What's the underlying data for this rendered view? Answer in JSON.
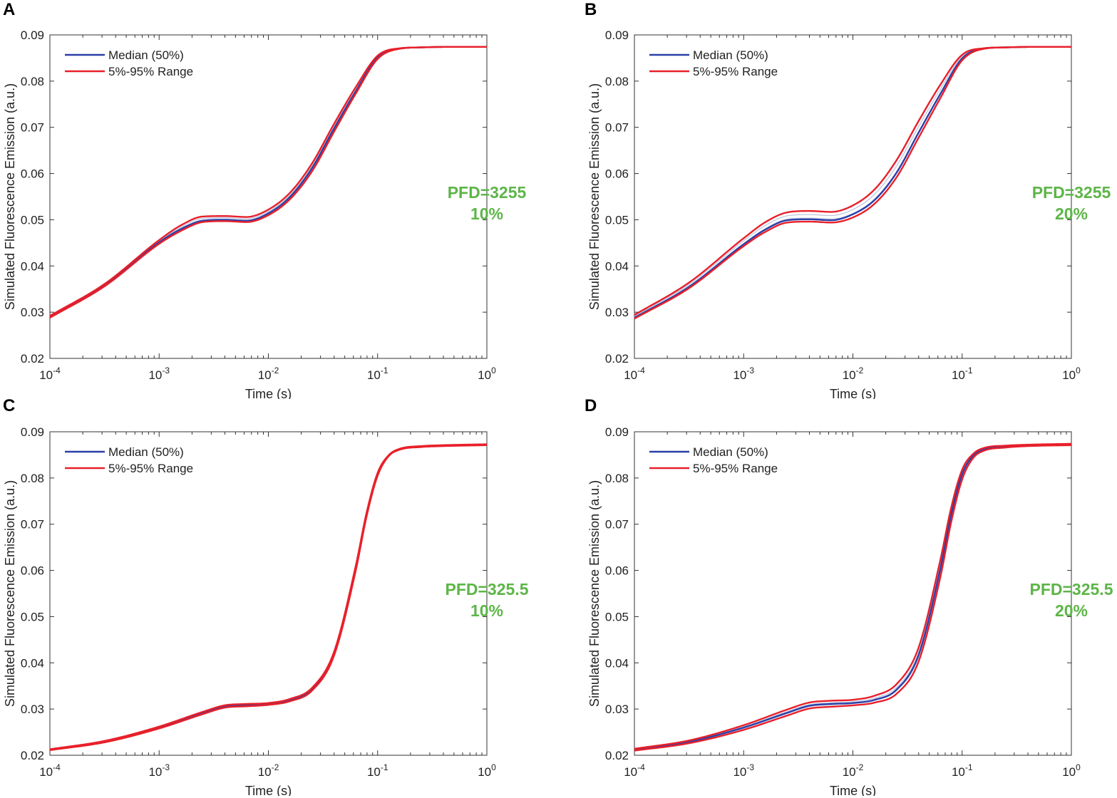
{
  "colors": {
    "median": "#2b3fa8",
    "range": "#e8202a",
    "inner": "#b9c4dc",
    "annotation": "#5db548",
    "axis": "#333333"
  },
  "legend": {
    "median_label": "Median (50%)",
    "range_label": "5%-95% Range"
  },
  "chart_data": [
    {
      "panel": "A",
      "type": "line",
      "xlabel": "Time (s)",
      "ylabel": "Simulated Fluorescence Emission (a.u.)",
      "xscale": "log",
      "xlim": [
        0.0001,
        1
      ],
      "ylim": [
        0.02,
        0.09
      ],
      "yticks": [
        "0.02",
        "0.03",
        "0.04",
        "0.05",
        "0.06",
        "0.07",
        "0.08",
        "0.09"
      ],
      "xticks": [
        {
          "base": "10",
          "exp": "-4"
        },
        {
          "base": "10",
          "exp": "-3"
        },
        {
          "base": "10",
          "exp": "-2"
        },
        {
          "base": "10",
          "exp": "-1"
        },
        {
          "base": "10",
          "exp": "0"
        }
      ],
      "annotation": [
        "PFD=3255",
        "10%"
      ],
      "legend_position": "top-left",
      "x_log10": [
        -4,
        -3.5,
        -3,
        -2.8,
        -2.6,
        -2.4,
        -2.2,
        -2.0,
        -1.8,
        -1.6,
        -1.4,
        -1.2,
        -1.0,
        -0.8,
        -0.6,
        -0.4,
        0
      ],
      "series": [
        {
          "name": "5%",
          "role": "range",
          "values": [
            0.0288,
            0.0356,
            0.0448,
            0.0476,
            0.0495,
            0.0497,
            0.0495,
            0.051,
            0.0545,
            0.0605,
            0.069,
            0.0773,
            0.0848,
            0.087,
            0.0873,
            0.0874,
            0.0874
          ]
        },
        {
          "name": "Median (50%)",
          "role": "median",
          "values": [
            0.029,
            0.0358,
            0.0451,
            0.048,
            0.0498,
            0.05,
            0.0498,
            0.0514,
            0.055,
            0.0612,
            0.0697,
            0.0778,
            0.0851,
            0.087,
            0.0873,
            0.0874,
            0.0874
          ]
        },
        {
          "name": "95%",
          "role": "range",
          "values": [
            0.0292,
            0.0361,
            0.0456,
            0.0488,
            0.0507,
            0.0508,
            0.0506,
            0.0522,
            0.0559,
            0.0622,
            0.0707,
            0.0787,
            0.0855,
            0.0871,
            0.0873,
            0.0874,
            0.0874
          ]
        }
      ]
    },
    {
      "panel": "B",
      "type": "line",
      "xlabel": "Time (s)",
      "ylabel": "Simulated Fluorescence Emission (a.u.)",
      "xscale": "log",
      "xlim": [
        0.0001,
        1
      ],
      "ylim": [
        0.02,
        0.09
      ],
      "yticks": [
        "0.02",
        "0.03",
        "0.04",
        "0.05",
        "0.06",
        "0.07",
        "0.08",
        "0.09"
      ],
      "xticks": [
        {
          "base": "10",
          "exp": "-4"
        },
        {
          "base": "10",
          "exp": "-3"
        },
        {
          "base": "10",
          "exp": "-2"
        },
        {
          "base": "10",
          "exp": "-1"
        },
        {
          "base": "10",
          "exp": "0"
        }
      ],
      "annotation": [
        "PFD=3255",
        "20%"
      ],
      "legend_position": "top-left",
      "x_log10": [
        -4,
        -3.5,
        -3,
        -2.8,
        -2.6,
        -2.4,
        -2.2,
        -2.0,
        -1.8,
        -1.6,
        -1.4,
        -1.2,
        -1.0,
        -0.8,
        -0.6,
        -0.4,
        0
      ],
      "series": [
        {
          "name": "5%",
          "role": "range",
          "values": [
            0.0286,
            0.0352,
            0.0443,
            0.0474,
            0.0494,
            0.0496,
            0.0494,
            0.0505,
            0.0535,
            0.0592,
            0.0677,
            0.0763,
            0.0845,
            0.087,
            0.0873,
            0.0874,
            0.0874
          ]
        },
        {
          "name": "Median (50%)",
          "role": "median",
          "values": [
            0.0288,
            0.0355,
            0.0447,
            0.0479,
            0.0499,
            0.0501,
            0.0499,
            0.0512,
            0.0543,
            0.0602,
            0.0688,
            0.0772,
            0.0849,
            0.0871,
            0.0873,
            0.0874,
            0.0874
          ]
        },
        {
          "name": "95%",
          "role": "range",
          "values": [
            0.0294,
            0.0364,
            0.046,
            0.0495,
            0.0516,
            0.0519,
            0.0517,
            0.0531,
            0.0566,
            0.0629,
            0.0713,
            0.0792,
            0.0857,
            0.0871,
            0.0873,
            0.0874,
            0.0874
          ]
        }
      ]
    },
    {
      "panel": "C",
      "type": "line",
      "xlabel": "Time (s)",
      "ylabel": "Simulated Fluorescence Emission (a.u.)",
      "xscale": "log",
      "xlim": [
        0.0001,
        1
      ],
      "ylim": [
        0.02,
        0.09
      ],
      "yticks": [
        "0.02",
        "0.03",
        "0.04",
        "0.05",
        "0.06",
        "0.07",
        "0.08",
        "0.09"
      ],
      "xticks": [
        {
          "base": "10",
          "exp": "-4"
        },
        {
          "base": "10",
          "exp": "-3"
        },
        {
          "base": "10",
          "exp": "-2"
        },
        {
          "base": "10",
          "exp": "-1"
        },
        {
          "base": "10",
          "exp": "0"
        }
      ],
      "annotation": [
        "PFD=325.5",
        "10%"
      ],
      "legend_position": "top-left",
      "x_log10": [
        -4,
        -3.5,
        -3,
        -2.6,
        -2.4,
        -2.2,
        -2.0,
        -1.8,
        -1.6,
        -1.4,
        -1.2,
        -1.1,
        -1.0,
        -0.9,
        -0.8,
        -0.6,
        -0.4,
        0
      ],
      "series": [
        {
          "name": "5%",
          "role": "range",
          "values": [
            0.0211,
            0.0228,
            0.0258,
            0.0289,
            0.0303,
            0.0306,
            0.0309,
            0.0317,
            0.034,
            0.0415,
            0.06,
            0.0718,
            0.0805,
            0.0847,
            0.0861,
            0.0867,
            0.0869,
            0.0871
          ]
        },
        {
          "name": "Median (50%)",
          "role": "median",
          "values": [
            0.0212,
            0.0229,
            0.026,
            0.0292,
            0.0306,
            0.0309,
            0.0311,
            0.0319,
            0.0343,
            0.0419,
            0.0605,
            0.0722,
            0.0808,
            0.0848,
            0.0862,
            0.0868,
            0.087,
            0.0872
          ]
        },
        {
          "name": "95%",
          "role": "range",
          "values": [
            0.0213,
            0.0231,
            0.0262,
            0.0294,
            0.0308,
            0.0311,
            0.0313,
            0.0322,
            0.0346,
            0.0423,
            0.061,
            0.0726,
            0.0811,
            0.0849,
            0.0863,
            0.0869,
            0.0871,
            0.0873
          ]
        }
      ]
    },
    {
      "panel": "D",
      "type": "line",
      "xlabel": "Time (s)",
      "ylabel": "Simulated Fluorescence Emission (a.u.)",
      "xscale": "log",
      "xlim": [
        0.0001,
        1
      ],
      "ylim": [
        0.02,
        0.09
      ],
      "yticks": [
        "0.02",
        "0.03",
        "0.04",
        "0.05",
        "0.06",
        "0.07",
        "0.08",
        "0.09"
      ],
      "xticks": [
        {
          "base": "10",
          "exp": "-4"
        },
        {
          "base": "10",
          "exp": "-3"
        },
        {
          "base": "10",
          "exp": "-2"
        },
        {
          "base": "10",
          "exp": "-1"
        },
        {
          "base": "10",
          "exp": "0"
        }
      ],
      "annotation": [
        "PFD=325.5",
        "20%"
      ],
      "legend_position": "top-left",
      "x_log10": [
        -4,
        -3.5,
        -3,
        -2.6,
        -2.4,
        -2.2,
        -2.0,
        -1.8,
        -1.6,
        -1.4,
        -1.2,
        -1.1,
        -1.0,
        -0.9,
        -0.8,
        -0.6,
        -0.4,
        0
      ],
      "series": [
        {
          "name": "5%",
          "role": "range",
          "values": [
            0.021,
            0.0226,
            0.0255,
            0.0286,
            0.0301,
            0.0305,
            0.0308,
            0.0314,
            0.0333,
            0.0402,
            0.0585,
            0.0705,
            0.0797,
            0.0843,
            0.0859,
            0.0866,
            0.0869,
            0.0871
          ]
        },
        {
          "name": "Median (50%)",
          "role": "median",
          "values": [
            0.0212,
            0.0229,
            0.026,
            0.0292,
            0.0307,
            0.0311,
            0.0313,
            0.032,
            0.0342,
            0.0416,
            0.0603,
            0.0721,
            0.0808,
            0.0848,
            0.0862,
            0.0868,
            0.087,
            0.0872
          ]
        },
        {
          "name": "95%",
          "role": "range",
          "values": [
            0.0214,
            0.0232,
            0.0265,
            0.0299,
            0.0314,
            0.0318,
            0.032,
            0.0329,
            0.0354,
            0.0432,
            0.0622,
            0.0736,
            0.0818,
            0.0852,
            0.0865,
            0.087,
            0.0872,
            0.0874
          ]
        }
      ]
    }
  ]
}
